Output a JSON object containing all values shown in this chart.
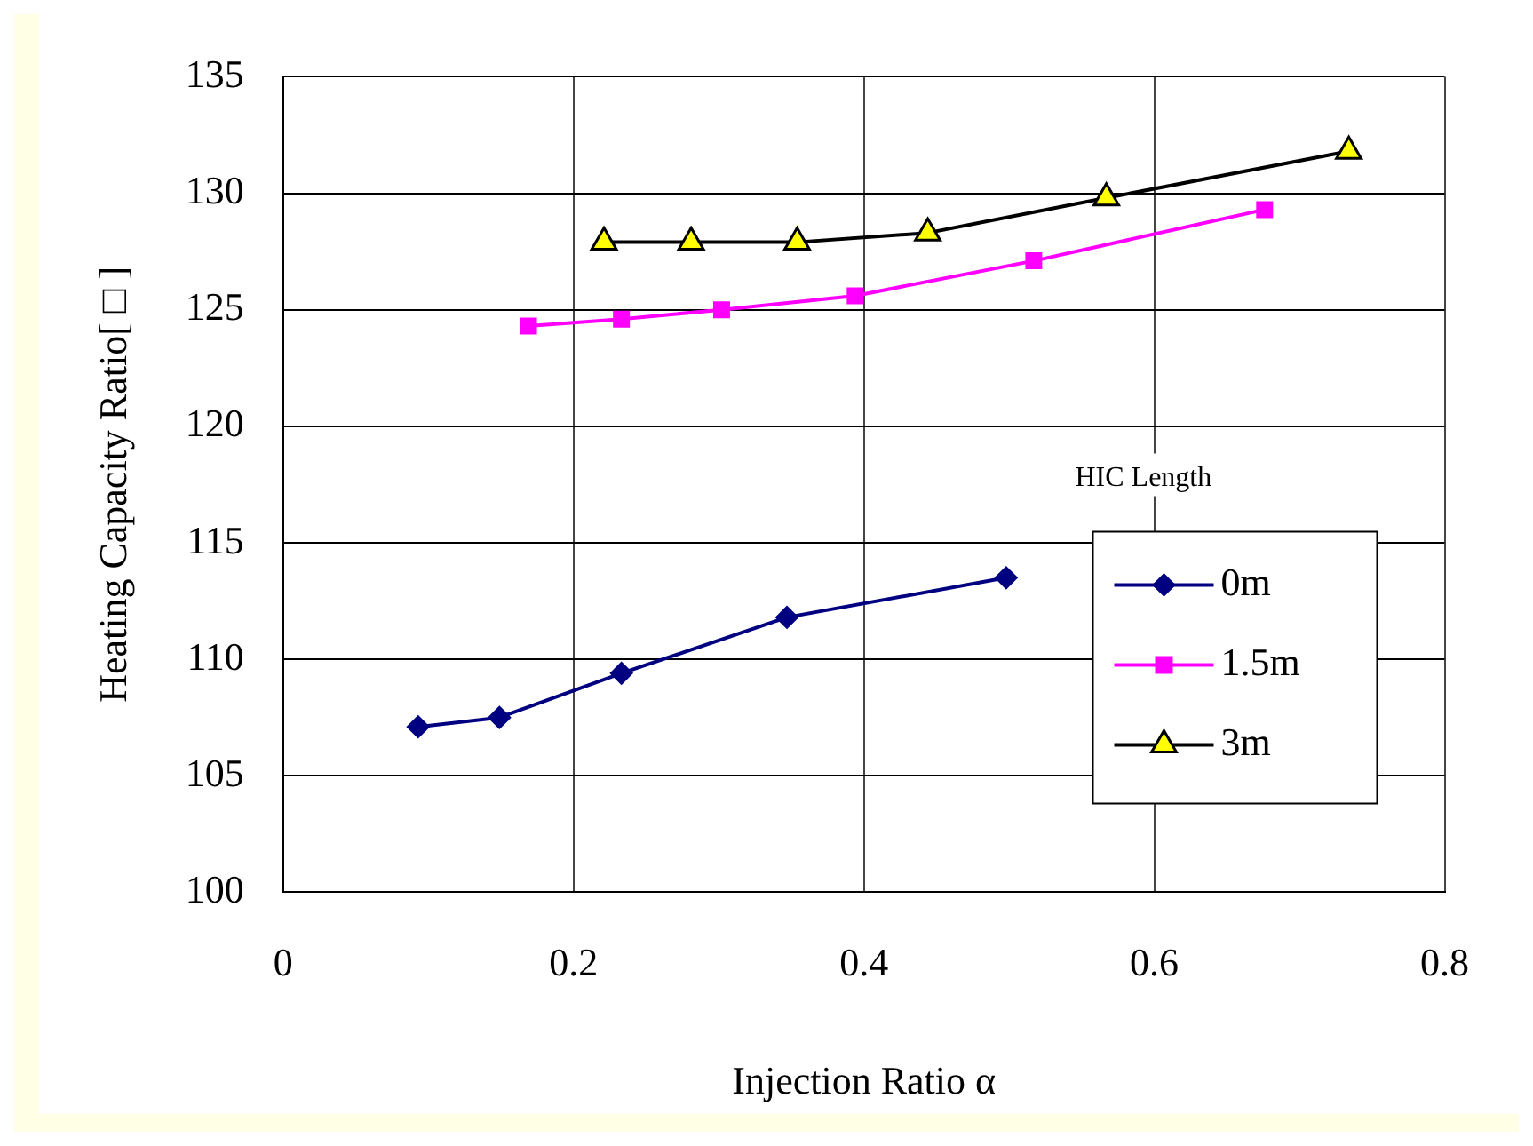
{
  "chart_data": {
    "type": "line",
    "xlabel": "Injection Ratio α",
    "ylabel": "Heating Capacity Ratio[ □ ]",
    "legend_title": "HIC Length",
    "legend": "bottom right",
    "grid": true,
    "line_style": "solid",
    "xlim": [
      0,
      0.8
    ],
    "xticks": [
      0,
      0.2,
      0.4,
      0.6,
      0.8
    ],
    "ylim": [
      100,
      135
    ],
    "yticks": [
      100,
      105,
      110,
      115,
      120,
      125,
      130,
      135
    ],
    "series": [
      {
        "name": "0m",
        "color": "#000080",
        "marker": "diamond",
        "x": [
          0.093,
          0.149,
          0.233,
          0.347,
          0.498
        ],
        "values": [
          107.1,
          107.5,
          109.4,
          111.8,
          113.5
        ]
      },
      {
        "name": "1.5m",
        "color": "#ff00ff",
        "marker": "square",
        "x": [
          0.169,
          0.233,
          0.302,
          0.394,
          0.517,
          0.676
        ],
        "values": [
          124.3,
          124.6,
          125.0,
          125.6,
          127.1,
          129.3
        ]
      },
      {
        "name": "3m",
        "color": "#000000",
        "marker": "triangle",
        "colors": [
          "#ffff00",
          "#ffff00",
          "#ffff00",
          "#ffff00",
          "#ffff00",
          "#ffff00"
        ],
        "x": [
          0.221,
          0.281,
          0.354,
          0.444,
          0.567,
          0.734
        ],
        "values": [
          127.9,
          127.9,
          127.9,
          128.3,
          129.8,
          131.8
        ]
      }
    ]
  }
}
